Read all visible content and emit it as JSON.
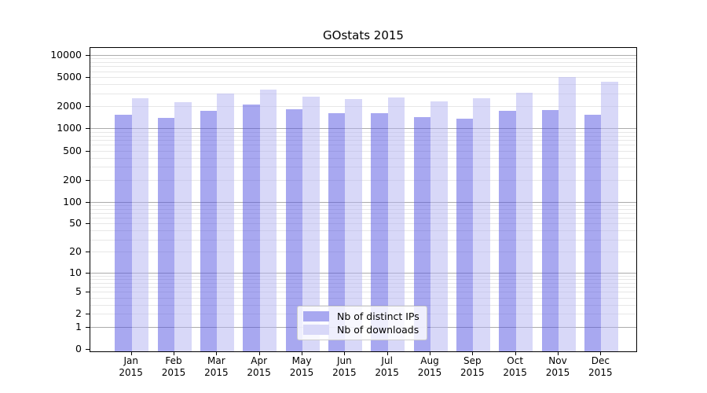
{
  "chart_data": {
    "type": "bar",
    "title": "GOstats 2015",
    "y_scale": "log10(value+1)",
    "y_range": [
      0,
      10000
    ],
    "y_tick_labels": [
      "10000",
      "5000",
      "2000",
      "1000",
      "500",
      "200",
      "100",
      "50",
      "20",
      "10",
      "5",
      "2",
      "1",
      "0"
    ],
    "y_tick_values": [
      10000,
      5000,
      2000,
      1000,
      500,
      200,
      100,
      50,
      20,
      10,
      5,
      2,
      1,
      0
    ],
    "grid": "horizontal, minor lines each 1-9 step per decade, darker line at each decade",
    "categories": [
      "Jan",
      "Feb",
      "Mar",
      "Apr",
      "May",
      "Jun",
      "Jul",
      "Aug",
      "Sep",
      "Oct",
      "Nov",
      "Dec"
    ],
    "category_year": "2015",
    "series": [
      {
        "name": "Nb of distinct IPs",
        "color": "#a8a8f0",
        "values": [
          1540,
          1400,
          1750,
          2130,
          1840,
          1600,
          1600,
          1420,
          1370,
          1720,
          1800,
          1520
        ]
      },
      {
        "name": "Nb of downloads",
        "color": "#d8d8f8",
        "values": [
          2600,
          2280,
          2960,
          3350,
          2730,
          2540,
          2620,
          2340,
          2600,
          3030,
          5000,
          4350
        ]
      }
    ],
    "legend_position": "inside bottom-center",
    "colors": {
      "frame": "#000000",
      "grid_minor": "#e7e7e7",
      "grid_decade": "#ababab",
      "background": "#ffffff"
    }
  }
}
